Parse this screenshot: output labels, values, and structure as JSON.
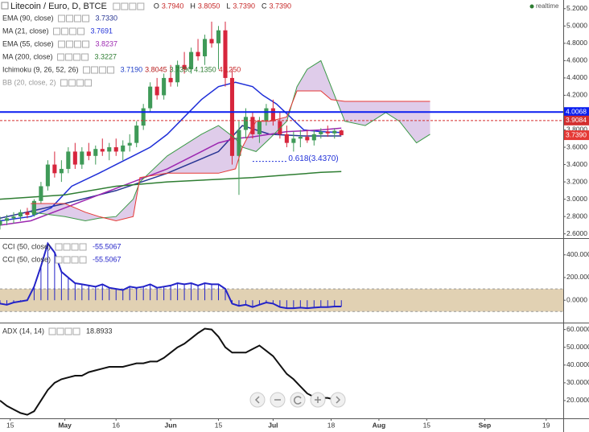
{
  "chart_data": [
    {
      "type": "candlestick",
      "title": "Litecoin / Euro, D, BTCE",
      "ohlc_legend": [
        {
          "key": "O",
          "value": "3.7940"
        },
        {
          "key": "H",
          "value": "3.8050"
        },
        {
          "key": "L",
          "value": "3.7390"
        },
        {
          "key": "C",
          "value": "3.7390"
        }
      ],
      "status": "realtime",
      "x": [
        11,
        13,
        15,
        17,
        19,
        21,
        23,
        25,
        27,
        29,
        31,
        33,
        35,
        37,
        39,
        41,
        43,
        45,
        47,
        49,
        51,
        53,
        55,
        57,
        59,
        61,
        63,
        65,
        67,
        69,
        71,
        73,
        75,
        77,
        79,
        81,
        83,
        85,
        87,
        89,
        91,
        93,
        95,
        97,
        99,
        101,
        103,
        105,
        107,
        109,
        111
      ],
      "open": [
        2.7,
        2.75,
        2.78,
        2.8,
        2.85,
        2.82,
        2.98,
        3.15,
        3.4,
        3.3,
        3.35,
        3.55,
        3.4,
        3.55,
        3.5,
        3.58,
        3.55,
        3.6,
        3.55,
        3.62,
        3.65,
        3.85,
        4.05,
        4.3,
        4.2,
        4.4,
        4.35,
        4.55,
        4.5,
        4.7,
        4.65,
        4.85,
        4.8,
        4.95,
        4.4,
        3.5,
        3.8,
        3.95,
        3.75,
        3.9,
        4.05,
        3.9,
        3.75,
        3.65,
        3.7,
        3.72,
        3.68,
        3.75,
        3.78,
        3.76,
        3.794
      ],
      "high": [
        2.8,
        2.82,
        2.85,
        2.88,
        2.9,
        3.0,
        3.2,
        3.45,
        3.55,
        3.45,
        3.6,
        3.65,
        3.6,
        3.65,
        3.62,
        3.7,
        3.65,
        3.7,
        3.68,
        3.75,
        3.9,
        4.1,
        4.35,
        4.4,
        4.45,
        4.55,
        4.6,
        4.7,
        4.75,
        4.85,
        4.9,
        5.05,
        5.0,
        5.05,
        4.5,
        3.9,
        4.05,
        4.0,
        3.95,
        4.1,
        4.15,
        4.0,
        3.85,
        3.78,
        3.8,
        3.8,
        3.8,
        3.82,
        3.85,
        3.82,
        3.805
      ],
      "low": [
        2.65,
        2.7,
        2.72,
        2.75,
        2.78,
        2.8,
        2.95,
        3.1,
        3.25,
        3.2,
        3.3,
        3.35,
        3.35,
        3.45,
        3.4,
        3.5,
        3.45,
        3.5,
        3.45,
        3.55,
        3.6,
        3.8,
        4.0,
        4.15,
        4.15,
        4.3,
        4.3,
        4.45,
        4.45,
        4.6,
        4.55,
        4.75,
        4.5,
        4.3,
        3.4,
        3.05,
        3.7,
        3.7,
        3.65,
        3.85,
        3.85,
        3.7,
        3.6,
        3.55,
        3.6,
        3.65,
        3.62,
        3.7,
        3.72,
        3.7,
        3.739
      ],
      "close": [
        2.75,
        2.78,
        2.8,
        2.85,
        2.82,
        2.98,
        3.15,
        3.4,
        3.3,
        3.35,
        3.55,
        3.4,
        3.55,
        3.5,
        3.58,
        3.55,
        3.6,
        3.55,
        3.62,
        3.65,
        3.85,
        4.05,
        4.3,
        4.2,
        4.4,
        4.35,
        4.55,
        4.5,
        4.7,
        4.65,
        4.85,
        4.8,
        4.95,
        4.4,
        3.5,
        3.8,
        3.95,
        3.75,
        3.9,
        4.05,
        3.9,
        3.75,
        3.65,
        3.7,
        3.72,
        3.68,
        3.75,
        3.78,
        3.76,
        3.79,
        3.739
      ],
      "up_color": "#3f9a58",
      "down_color": "#d7263d",
      "xlim": [
        11,
        176
      ],
      "xticks": [
        {
          "value": 14,
          "label": "15"
        },
        {
          "value": 30,
          "label": "May"
        },
        {
          "value": 45,
          "label": "16"
        },
        {
          "value": 61,
          "label": "Jun"
        },
        {
          "value": 75,
          "label": "15"
        },
        {
          "value": 91,
          "label": "Jul"
        },
        {
          "value": 108,
          "label": "18"
        },
        {
          "value": 122,
          "label": "Aug"
        },
        {
          "value": 136,
          "label": "15"
        },
        {
          "value": 153,
          "label": "Sep"
        },
        {
          "value": 171,
          "label": "19"
        }
      ],
      "ylim": [
        2.56,
        5.3
      ],
      "yticks": [
        {
          "value": 5.2,
          "label": "5.2000"
        },
        {
          "value": 5.0,
          "label": "5.0000"
        },
        {
          "value": 4.8,
          "label": "4.8000"
        },
        {
          "value": 4.6,
          "label": "4.6000"
        },
        {
          "value": 4.4,
          "label": "4.4000"
        },
        {
          "value": 4.2,
          "label": "4.2000"
        },
        {
          "value": 4.0,
          "label": "4.0000"
        },
        {
          "value": 3.8,
          "label": "3.8000"
        },
        {
          "value": 3.6,
          "label": "3.6000"
        },
        {
          "value": 3.4,
          "label": "3.4000"
        },
        {
          "value": 3.2,
          "label": "3.2000"
        },
        {
          "value": 3.0,
          "label": "3.0000"
        },
        {
          "value": 2.8,
          "label": "2.8000"
        },
        {
          "value": 2.6,
          "label": "2.6000"
        }
      ],
      "series": [
        {
          "name": "EMA (90, close)",
          "color": "#283593",
          "last": "3.7330",
          "x": [
            11,
            30,
            45,
            60,
            75,
            82,
            90,
            100,
            111
          ],
          "values": [
            2.78,
            2.95,
            3.1,
            3.3,
            3.55,
            3.85,
            3.75,
            3.73,
            3.73
          ]
        },
        {
          "name": "MA (21, close)",
          "color": "#1f2fd8",
          "last": "3.7691",
          "x": [
            11,
            20,
            26,
            32,
            40,
            45,
            50,
            55,
            60,
            65,
            70,
            75,
            80,
            85,
            88,
            92,
            96,
            100,
            105,
            111
          ],
          "values": [
            2.75,
            2.8,
            2.9,
            3.15,
            3.3,
            3.4,
            3.5,
            3.6,
            3.75,
            3.95,
            4.15,
            4.3,
            4.35,
            4.3,
            4.2,
            4.1,
            3.95,
            3.8,
            3.78,
            3.77
          ]
        },
        {
          "name": "EMA (55, close)",
          "color": "#9c27b0",
          "last": "3.8237",
          "x": [
            11,
            20,
            30,
            40,
            50,
            60,
            70,
            75,
            80,
            85,
            90,
            95,
            100,
            105,
            111
          ],
          "values": [
            2.7,
            2.75,
            2.9,
            3.05,
            3.2,
            3.35,
            3.55,
            3.65,
            3.7,
            3.72,
            3.75,
            3.78,
            3.79,
            3.8,
            3.82
          ]
        },
        {
          "name": "MA (200, close)",
          "color": "#2e7d32",
          "last": "3.3227",
          "x": [
            11,
            30,
            45,
            60,
            75,
            85,
            95,
            105,
            111
          ],
          "values": [
            3.0,
            3.05,
            3.15,
            3.2,
            3.23,
            3.25,
            3.28,
            3.31,
            3.32
          ]
        }
      ],
      "ichimoku": {
        "name": "Ichimoku (9, 26, 52, 26)",
        "readings": [
          {
            "value": "3.7190",
            "color": "#1f3fc8"
          },
          {
            "value": "3.8045",
            "color": "#b71c1c"
          },
          {
            "value": "3.7390",
            "color": "#2e7d32"
          },
          {
            "value": "4.1350",
            "color": "#2e7d32"
          },
          {
            "value": "4.1250",
            "color": "#c62828"
          }
        ],
        "cloud_color": "#b98fd0",
        "span_a": {
          "color": "#3c9a48",
          "x": [
            20,
            30,
            36,
            40,
            45,
            50,
            52,
            60,
            70,
            75,
            80,
            82,
            86,
            90,
            95,
            98,
            101,
            105,
            108,
            112,
            118,
            124,
            128,
            133,
            137
          ],
          "values": [
            2.85,
            2.8,
            2.75,
            2.78,
            2.8,
            3.0,
            3.2,
            3.5,
            3.75,
            3.85,
            3.7,
            3.6,
            3.55,
            3.7,
            3.9,
            4.3,
            4.5,
            4.6,
            4.3,
            3.9,
            3.85,
            4.0,
            3.9,
            3.65,
            3.75
          ]
        },
        "span_b": {
          "color": "#e53935",
          "x": [
            20,
            30,
            36,
            40,
            45,
            50,
            52,
            60,
            70,
            75,
            80,
            82,
            86,
            90,
            95,
            98,
            101,
            105,
            108,
            112,
            118,
            124,
            128,
            133,
            137
          ],
          "values": [
            2.95,
            2.95,
            2.85,
            2.8,
            2.75,
            2.8,
            3.25,
            3.3,
            3.3,
            3.3,
            3.35,
            3.6,
            3.9,
            3.9,
            3.95,
            4.25,
            4.25,
            4.25,
            4.15,
            4.13,
            4.13,
            4.13,
            4.13,
            4.13,
            4.13
          ]
        }
      },
      "bb": {
        "name": "BB (20, close, 2)"
      },
      "levels": [
        {
          "value": 4.0068,
          "label": "4.0068",
          "color": "#0a1ef0",
          "style": "solid"
        },
        {
          "value": 3.9084,
          "label": "3.9084",
          "color": "#d32f2f",
          "style": "dashed"
        }
      ],
      "last_price": {
        "value": 3.739,
        "label": "3.7390",
        "color": "#e53935"
      },
      "fib": {
        "value": 3.437,
        "label": "0.618(3.4370)",
        "x": [
          85,
          95
        ],
        "color": "#1f2fd8"
      }
    },
    {
      "type": "line",
      "legend": [
        {
          "name": "CCI (50, close)",
          "value": "-55.5067"
        },
        {
          "name": "CCI (50, close)",
          "value": "-55.5067"
        }
      ],
      "series": [
        {
          "color": "#2323c8",
          "x": [
            11,
            13,
            15,
            17,
            19,
            21,
            23,
            25,
            27,
            29,
            31,
            33,
            35,
            37,
            39,
            41,
            43,
            45,
            47,
            49,
            51,
            53,
            55,
            57,
            59,
            61,
            63,
            65,
            67,
            69,
            71,
            73,
            75,
            77,
            79,
            81,
            83,
            85,
            87,
            89,
            91,
            93,
            95,
            97,
            99,
            101,
            103,
            105,
            107,
            109,
            111
          ],
          "values": [
            -30,
            -40,
            -20,
            -10,
            0,
            120,
            300,
            500,
            420,
            250,
            200,
            150,
            140,
            130,
            120,
            140,
            110,
            100,
            90,
            120,
            110,
            120,
            140,
            110,
            120,
            130,
            150,
            140,
            150,
            130,
            150,
            140,
            140,
            100,
            -30,
            -50,
            -40,
            -60,
            -40,
            -20,
            -30,
            -60,
            -70,
            -70,
            -65,
            -70,
            -65,
            -60,
            -60,
            -55,
            -55.5067
          ]
        }
      ],
      "stems": true,
      "band": [
        -100,
        100
      ],
      "band_color": "#dcc9a6",
      "ylim": [
        -190,
        533
      ],
      "yticks": [
        {
          "value": 400,
          "label": "400.0000"
        },
        {
          "value": 200,
          "label": "200.0000"
        },
        {
          "value": 0,
          "label": "0.0000"
        }
      ]
    },
    {
      "type": "line",
      "legend": [
        {
          "name": "ADX (14, 14)",
          "value": "18.8933"
        }
      ],
      "series": [
        {
          "color": "#111111",
          "x": [
            11,
            13,
            15,
            17,
            19,
            21,
            23,
            25,
            27,
            29,
            31,
            33,
            35,
            37,
            39,
            41,
            43,
            45,
            47,
            49,
            51,
            53,
            55,
            57,
            59,
            61,
            63,
            65,
            67,
            69,
            71,
            73,
            75,
            77,
            79,
            81,
            83,
            85,
            87,
            89,
            91,
            93,
            95,
            97,
            99,
            101,
            103,
            105,
            107,
            109,
            111
          ],
          "values": [
            20,
            17,
            15,
            13,
            12,
            14,
            20,
            26,
            30,
            32,
            33,
            34,
            34,
            36,
            37,
            38,
            39,
            39,
            39,
            40,
            41,
            41,
            42,
            42,
            44,
            47,
            50,
            52,
            55,
            58,
            60.5,
            60,
            56,
            50,
            47,
            47,
            47,
            49,
            51,
            48,
            45,
            40,
            35,
            32,
            28,
            24,
            22,
            21.5,
            21.5,
            20.5,
            18.8933
          ]
        }
      ],
      "ylim": [
        10,
        63
      ],
      "yticks": [
        {
          "value": 60,
          "label": "60.0000"
        },
        {
          "value": 50,
          "label": "50.0000"
        },
        {
          "value": 40,
          "label": "40.0000"
        },
        {
          "value": 30,
          "label": "30.0000"
        },
        {
          "value": 20,
          "label": "20.0000"
        }
      ]
    }
  ]
}
